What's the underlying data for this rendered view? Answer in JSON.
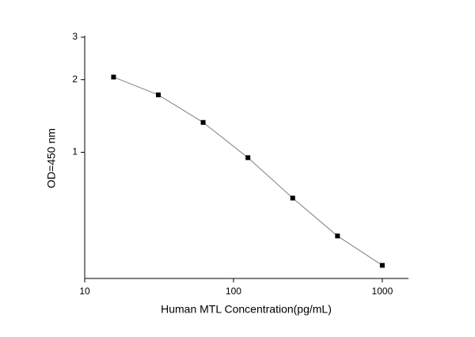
{
  "chart_data": {
    "type": "line",
    "xlabel": "Human MTL Concentration(pg/mL)",
    "ylabel": "OD=450 nm",
    "x": [
      15.625,
      31.25,
      62.5,
      125,
      250,
      500,
      1000
    ],
    "values": [
      2.05,
      1.73,
      1.33,
      0.95,
      0.646,
      0.45,
      0.34
    ],
    "color": "#000000",
    "line_color": "#808080",
    "log_x": true,
    "log_y": true,
    "xlim": [
      10,
      1500
    ],
    "xticks": [
      10,
      100,
      1000
    ],
    "ylim": [
      0.3,
      3
    ],
    "yticks": [
      1,
      2,
      3
    ]
  }
}
